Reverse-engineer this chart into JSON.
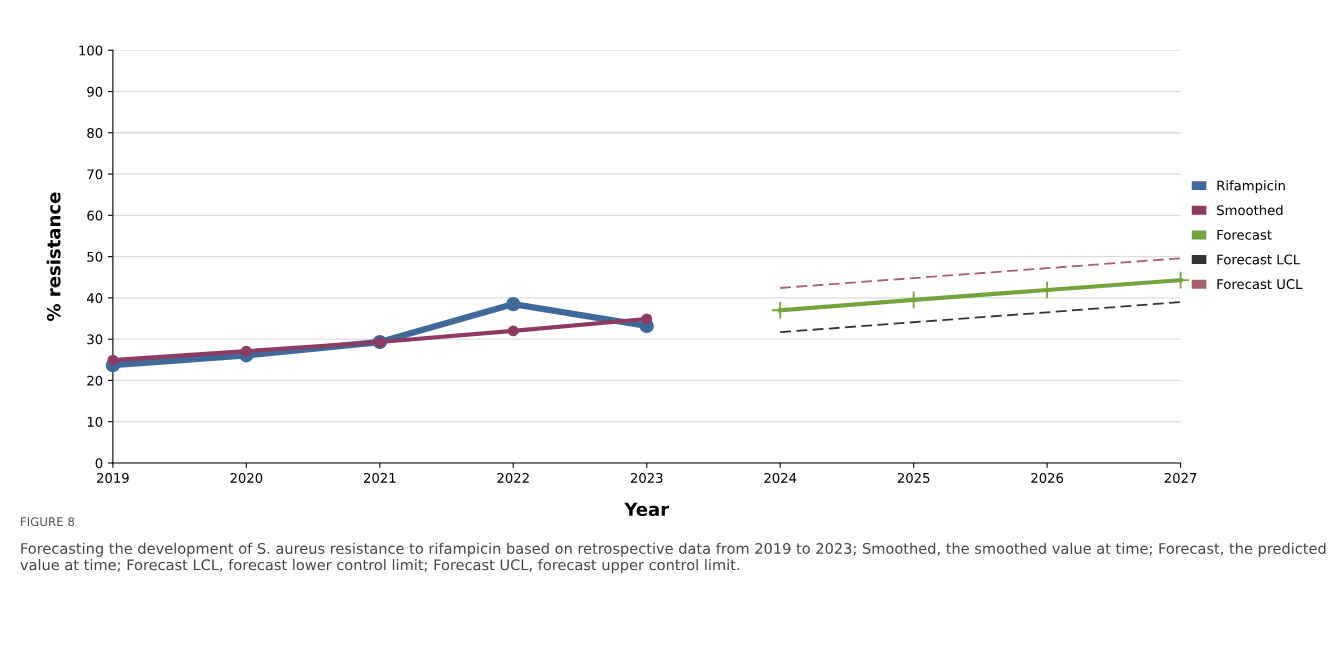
{
  "chart_data": {
    "type": "line",
    "xlabel": "Year",
    "ylabel": "% resistance",
    "x": [
      2019,
      2020,
      2021,
      2022,
      2023
    ],
    "series": [
      {
        "name": "Rifampicin",
        "color": "#3d6a9a",
        "values": [
          23.7,
          26.1,
          29.3,
          38.5,
          33.2
        ],
        "marker": "circle",
        "line_style": "solid"
      },
      {
        "name": "Smoothed",
        "color": "#8e3a63",
        "values": [
          24.9,
          27.1,
          29.3,
          32.0,
          34.9
        ],
        "marker": "circle",
        "line_style": "solid"
      },
      {
        "name": "Forecast",
        "color": "#72a43c",
        "x": [
          2024,
          2025,
          2026,
          2027
        ],
        "values": [
          37.0,
          39.5,
          41.9,
          44.3
        ],
        "marker": "cross",
        "line_style": "solid"
      },
      {
        "name": "Forecast LCL",
        "color": "#333333",
        "x": [
          2024,
          2025,
          2026,
          2027
        ],
        "values": [
          31.7,
          34.1,
          36.5,
          39.0
        ],
        "marker": "none",
        "line_style": "dashed"
      },
      {
        "name": "Forecast UCL",
        "color": "#a8606e",
        "x": [
          2024,
          2025,
          2026,
          2027
        ],
        "values": [
          42.4,
          44.8,
          47.2,
          49.6
        ],
        "marker": "none",
        "line_style": "dashed"
      }
    ],
    "xlim": [
      2019,
      2027
    ],
    "xticks": [
      2019,
      2020,
      2021,
      2022,
      2023,
      2024,
      2025,
      2026,
      2027
    ],
    "ylim": [
      0,
      100
    ],
    "yticks": [
      0,
      10,
      20,
      30,
      40,
      50,
      60,
      70,
      80,
      90,
      100
    ],
    "grid": "y",
    "legend": "right",
    "annotations": [
      "FIGURE 8",
      "Forecasting the development of S. aureus resistance to rifampicin based on retrospective data from 2019 to 2023; Smoothed, the smoothed value at time; Forecast, the predicted value at time; Forecast LCL, forecast lower control limit; Forecast UCL, forecast upper control limit."
    ]
  }
}
